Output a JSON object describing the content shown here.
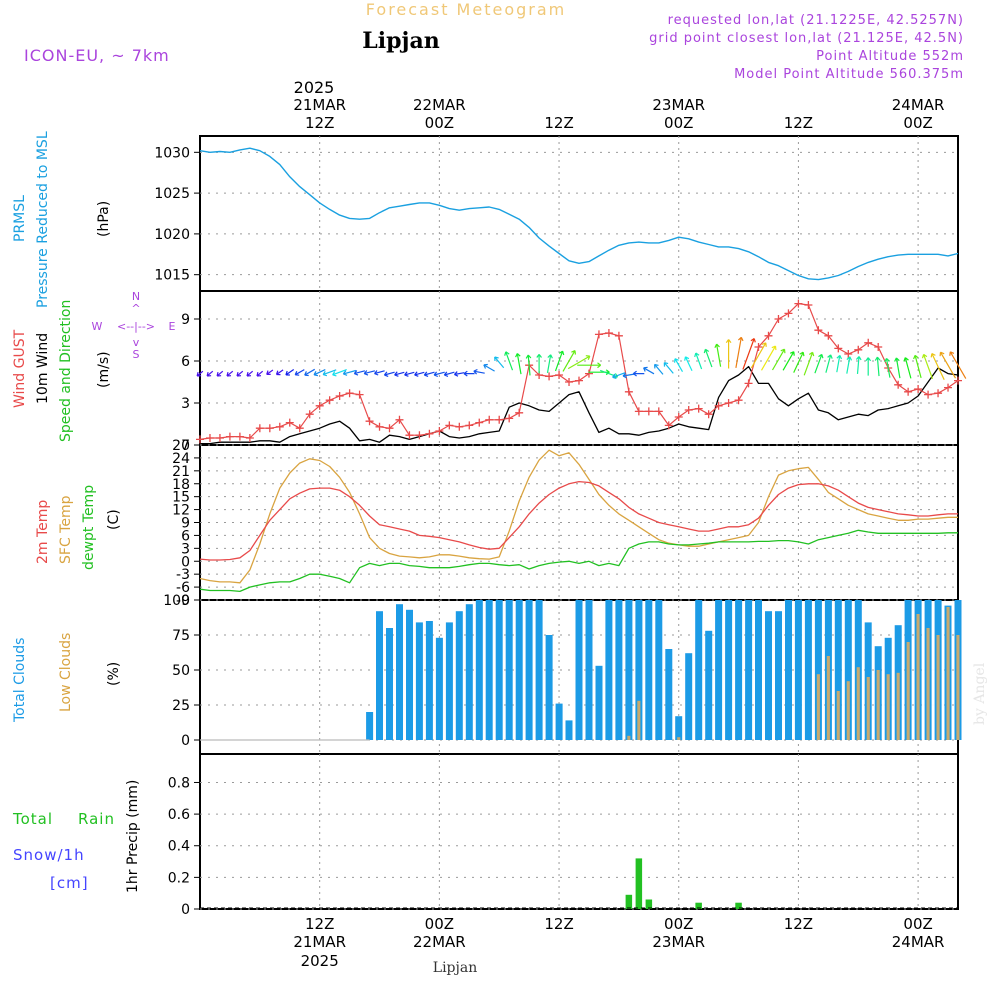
{
  "header": {
    "title": "Forecast Meteogram",
    "location": "Lipjan",
    "model": "ICON-EU, ~ 7km",
    "requested": "requested lon,lat (21.1225E, 42.5257N)",
    "grid": "grid point closest lon,lat (21.125E, 42.5N)",
    "altitude": "Point Altitude 552m",
    "model_altitude": "Model Point Altitude 560.375m",
    "credit": "by Angel",
    "bottom_location": "Lipjan"
  },
  "time_axis": {
    "top_year": "2025",
    "top_ticks": [
      {
        "h": 12,
        "l1": "21MAR",
        "l2": "12Z"
      },
      {
        "h": 24,
        "l1": "22MAR",
        "l2": "00Z"
      },
      {
        "h": 36,
        "l1": "",
        "l2": "12Z"
      },
      {
        "h": 48,
        "l1": "23MAR",
        "l2": "00Z"
      },
      {
        "h": 60,
        "l1": "",
        "l2": "12Z"
      },
      {
        "h": 72,
        "l1": "24MAR",
        "l2": "00Z"
      }
    ],
    "bottom_ticks": [
      {
        "h": 12,
        "l1": "12Z",
        "l2": "21MAR",
        "l3": "2025"
      },
      {
        "h": 24,
        "l1": "00Z",
        "l2": "22MAR",
        "l3": ""
      },
      {
        "h": 36,
        "l1": "12Z",
        "l2": "",
        "l3": ""
      },
      {
        "h": 48,
        "l1": "00Z",
        "l2": "23MAR",
        "l3": ""
      },
      {
        "h": 60,
        "l1": "12Z",
        "l2": "",
        "l3": ""
      },
      {
        "h": 72,
        "l1": "00Z",
        "l2": "24MAR",
        "l3": ""
      }
    ]
  },
  "colors": {
    "pressure": "#1aa0e0",
    "gust": "#e84a4a",
    "wind": "#000000",
    "temp2m": "#e84a4a",
    "sfc": "#d9a441",
    "dew": "#22c022",
    "totalcloud": "#1c9be6",
    "lowcloud": "#c8aa6e",
    "rain": "#22c022",
    "snow": "#4444ff",
    "purple": "#aa44dd",
    "title": "#f0c878"
  },
  "chart_data": [
    {
      "type": "line",
      "name": "pressure",
      "label1": "PRMSL",
      "label2": "Pressure Reduced to MSL",
      "unit": "(hPa)",
      "ylim": [
        1013,
        1032
      ],
      "yticks": [
        1015,
        1020,
        1025,
        1030
      ],
      "x_hours": [
        0,
        1,
        2,
        3,
        4,
        5,
        6,
        7,
        8,
        9,
        10,
        11,
        12,
        13,
        14,
        15,
        16,
        17,
        18,
        19,
        20,
        21,
        22,
        23,
        24,
        25,
        26,
        27,
        28,
        29,
        30,
        31,
        32,
        33,
        34,
        35,
        36,
        37,
        38,
        39,
        40,
        41,
        42,
        43,
        44,
        45,
        46,
        47,
        48,
        49,
        50,
        51,
        52,
        53,
        54,
        55,
        56,
        57,
        58,
        59,
        60,
        61,
        62,
        63,
        64,
        65,
        66,
        67,
        68,
        69,
        70,
        71,
        72,
        73,
        74,
        75,
        76
      ],
      "values": [
        1030.2,
        1030.0,
        1030.1,
        1030.0,
        1030.3,
        1030.5,
        1030.2,
        1029.5,
        1028.5,
        1027.0,
        1025.8,
        1024.8,
        1023.8,
        1023.0,
        1022.3,
        1021.9,
        1021.8,
        1021.9,
        1022.6,
        1023.2,
        1023.4,
        1023.6,
        1023.8,
        1023.8,
        1023.5,
        1023.1,
        1022.9,
        1023.1,
        1023.2,
        1023.3,
        1023.0,
        1022.4,
        1021.8,
        1020.8,
        1019.5,
        1018.5,
        1017.6,
        1016.7,
        1016.4,
        1016.6,
        1017.3,
        1018.0,
        1018.6,
        1018.9,
        1019.0,
        1018.9,
        1018.9,
        1019.2,
        1019.6,
        1019.4,
        1019.0,
        1018.7,
        1018.4,
        1018.4,
        1018.2,
        1017.8,
        1017.2,
        1016.5,
        1016.1,
        1015.5,
        1014.9,
        1014.5,
        1014.4,
        1014.6,
        1014.9,
        1015.4,
        1016.0,
        1016.5,
        1016.9,
        1017.2,
        1017.4,
        1017.5,
        1017.5,
        1017.5,
        1017.5,
        1017.3,
        1017.6
      ]
    },
    {
      "type": "line",
      "name": "wind",
      "label1": "Wind GUST",
      "label2": "10m Wind",
      "label3": "Speed and Direction",
      "unit": "(m/s)",
      "compass": {
        "n": "N",
        "s": "S",
        "e": "E",
        "w": "W"
      },
      "ylim": [
        0,
        11
      ],
      "yticks": [
        0,
        3,
        6,
        9
      ],
      "x_hours": [
        0,
        1,
        2,
        3,
        4,
        5,
        6,
        7,
        8,
        9,
        10,
        11,
        12,
        13,
        14,
        15,
        16,
        17,
        18,
        19,
        20,
        21,
        22,
        23,
        24,
        25,
        26,
        27,
        28,
        29,
        30,
        31,
        32,
        33,
        34,
        35,
        36,
        37,
        38,
        39,
        40,
        41,
        42,
        43,
        44,
        45,
        46,
        47,
        48,
        49,
        50,
        51,
        52,
        53,
        54,
        55,
        56,
        57,
        58,
        59,
        60,
        61,
        62,
        63,
        64,
        65,
        66,
        67,
        68,
        69,
        70,
        71,
        72,
        73,
        74,
        75,
        76
      ],
      "gust": [
        0.4,
        0.5,
        0.5,
        0.6,
        0.6,
        0.5,
        1.2,
        1.2,
        1.3,
        1.6,
        1.2,
        2.2,
        2.8,
        3.2,
        3.5,
        3.7,
        3.6,
        1.7,
        1.3,
        1.2,
        1.8,
        0.7,
        0.7,
        0.8,
        1.0,
        1.4,
        1.3,
        1.4,
        1.6,
        1.8,
        1.8,
        1.9,
        2.3,
        5.7,
        5.0,
        4.9,
        5.0,
        4.5,
        4.6,
        5.1,
        7.9,
        8.0,
        7.8,
        3.8,
        2.4,
        2.4,
        2.4,
        1.4,
        2.0,
        2.5,
        2.6,
        2.2,
        2.8,
        3.0,
        3.2,
        4.4,
        7.0,
        7.8,
        9.0,
        9.4,
        10.1,
        10.0,
        8.2,
        7.8,
        6.9,
        6.5,
        6.8,
        7.3,
        7.0,
        5.5,
        4.3,
        3.8,
        4.0,
        3.6,
        3.7,
        4.1,
        4.6
      ],
      "wind": [
        0.1,
        0.1,
        0.2,
        0.2,
        0.2,
        0.2,
        0.3,
        0.3,
        0.2,
        0.6,
        0.8,
        1.0,
        1.2,
        1.5,
        1.7,
        1.2,
        0.3,
        0.4,
        0.2,
        0.7,
        0.6,
        0.4,
        0.6,
        0.8,
        1.0,
        0.6,
        0.5,
        0.6,
        0.8,
        0.9,
        1.0,
        2.7,
        3.0,
        2.8,
        2.5,
        2.4,
        3.0,
        3.6,
        3.8,
        2.3,
        0.9,
        1.2,
        0.8,
        0.8,
        0.7,
        0.9,
        1.0,
        1.2,
        1.5,
        1.3,
        1.2,
        1.1,
        3.4,
        4.6,
        5.0,
        5.6,
        4.4,
        4.4,
        3.3,
        2.8,
        3.3,
        3.7,
        2.5,
        2.3,
        1.8,
        2.0,
        2.2,
        2.1,
        2.5,
        2.6,
        2.8,
        3.0,
        3.5,
        4.5,
        5.5,
        5.1,
        5.0
      ],
      "arrow_y": [
        5.1,
        5.1,
        5.1,
        5.1,
        5.1,
        5.1,
        5.1,
        5.2,
        5.2,
        5.2,
        5.2,
        5.2,
        5.2,
        5.2,
        5.2,
        5.2,
        5.2,
        5.2,
        5.2,
        5.1,
        5.1,
        5.1,
        5.1,
        5.1,
        5.1,
        5.1,
        5.1,
        5.1,
        5.2,
        5.5,
        5.9,
        6.0,
        5.8,
        5.7,
        5.8,
        5.8,
        6.0,
        6.0,
        5.9,
        5.7,
        5.2,
        5.1,
        5.0,
        5.0,
        5.1,
        5.3,
        5.4,
        5.5,
        5.7,
        5.8,
        6.0,
        6.2,
        6.4,
        6.5,
        6.6,
        6.5,
        6.4,
        6.2,
        6.1,
        6.0,
        5.9,
        5.8,
        5.8,
        5.8,
        5.8,
        5.7,
        5.7,
        5.6,
        5.6,
        5.5,
        5.5,
        5.5,
        5.6,
        5.6,
        5.6,
        5.7,
        5.7
      ],
      "arrow_dir": [
        230,
        230,
        230,
        230,
        230,
        230,
        230,
        235,
        235,
        235,
        240,
        240,
        245,
        250,
        250,
        255,
        255,
        255,
        255,
        255,
        255,
        255,
        255,
        255,
        255,
        255,
        260,
        270,
        280,
        300,
        320,
        340,
        350,
        355,
        0,
        10,
        20,
        30,
        60,
        90,
        90,
        110,
        250,
        260,
        270,
        300,
        320,
        320,
        330,
        335,
        340,
        340,
        350,
        0,
        10,
        20,
        30,
        30,
        30,
        30,
        25,
        20,
        20,
        15,
        10,
        10,
        5,
        0,
        355,
        350,
        350,
        345,
        345,
        340,
        335,
        330,
        330
      ],
      "arrow_speed": [
        0.3,
        0.3,
        0.3,
        0.3,
        0.3,
        0.3,
        0.3,
        0.3,
        0.4,
        0.7,
        0.9,
        1.1,
        1.3,
        1.6,
        1.8,
        1.4,
        1.0,
        1.0,
        0.9,
        0.9,
        0.8,
        0.8,
        0.8,
        0.9,
        1.0,
        0.9,
        0.8,
        0.9,
        1.0,
        1.3,
        1.6,
        2.7,
        3.0,
        2.9,
        2.6,
        2.5,
        3.0,
        3.6,
        3.8,
        3.5,
        3.0,
        2.5,
        1.5,
        1.2,
        1.0,
        1.2,
        1.4,
        1.6,
        1.8,
        1.9,
        2.2,
        2.6,
        3.4,
        4.6,
        5.0,
        5.4,
        4.6,
        4.4,
        3.6,
        3.1,
        3.3,
        3.7,
        2.8,
        2.5,
        2.2,
        2.2,
        2.3,
        2.4,
        2.6,
        2.7,
        2.9,
        3.1,
        3.5,
        4.0,
        4.6,
        4.8,
        5.0
      ]
    },
    {
      "type": "line",
      "name": "temperature",
      "label1": "2m Temp",
      "label2": "SFC Temp",
      "label3": "dewpt Temp",
      "unit": "(C)",
      "ylim": [
        -9,
        27
      ],
      "yticks": [
        -9,
        -6,
        -3,
        0,
        3,
        6,
        9,
        12,
        15,
        18,
        21,
        24,
        27
      ],
      "x_hours": [
        0,
        1,
        2,
        3,
        4,
        5,
        6,
        7,
        8,
        9,
        10,
        11,
        12,
        13,
        14,
        15,
        16,
        17,
        18,
        19,
        20,
        21,
        22,
        23,
        24,
        25,
        26,
        27,
        28,
        29,
        30,
        31,
        32,
        33,
        34,
        35,
        36,
        37,
        38,
        39,
        40,
        41,
        42,
        43,
        44,
        45,
        46,
        47,
        48,
        49,
        50,
        51,
        52,
        53,
        54,
        55,
        56,
        57,
        58,
        59,
        60,
        61,
        62,
        63,
        64,
        65,
        66,
        67,
        68,
        69,
        70,
        71,
        72,
        73,
        74,
        75,
        76
      ],
      "temp2m": [
        0.5,
        0.3,
        0.3,
        0.4,
        0.8,
        2.5,
        6.0,
        9.5,
        12.0,
        14.5,
        15.8,
        16.8,
        17.0,
        17.0,
        16.5,
        15.0,
        13.0,
        10.5,
        8.5,
        8.0,
        7.5,
        7.0,
        6.0,
        5.8,
        5.5,
        5.0,
        4.5,
        3.8,
        3.2,
        2.8,
        3.0,
        5.5,
        8.0,
        11.0,
        13.5,
        15.5,
        17.0,
        18.0,
        18.5,
        18.3,
        17.5,
        16.0,
        14.5,
        12.5,
        11.0,
        10.0,
        9.0,
        8.5,
        8.0,
        7.5,
        7.0,
        7.0,
        7.5,
        8.0,
        8.0,
        8.5,
        10.0,
        13.0,
        15.5,
        17.0,
        17.8,
        18.0,
        18.0,
        17.5,
        16.5,
        15.0,
        13.5,
        12.5,
        12.0,
        11.5,
        11.0,
        10.8,
        10.5,
        10.5,
        10.8,
        11.0,
        11.0
      ],
      "sfc": [
        -4.0,
        -4.5,
        -4.8,
        -4.8,
        -5.0,
        -2.0,
        4.0,
        11.0,
        17.0,
        20.5,
        22.8,
        23.8,
        23.4,
        22.0,
        19.5,
        16.0,
        11.0,
        5.5,
        3.0,
        1.8,
        1.2,
        1.0,
        0.8,
        1.0,
        1.5,
        1.5,
        1.2,
        0.8,
        0.6,
        0.5,
        1.0,
        7.0,
        14.0,
        19.5,
        23.5,
        25.8,
        24.5,
        25.2,
        22.5,
        19.0,
        15.5,
        13.0,
        11.0,
        9.5,
        8.0,
        6.5,
        5.0,
        4.2,
        3.8,
        3.5,
        3.5,
        4.0,
        4.5,
        5.0,
        5.5,
        6.0,
        9.0,
        15.0,
        20.0,
        21.0,
        21.5,
        21.8,
        19.0,
        16.0,
        14.5,
        13.0,
        12.0,
        11.0,
        10.5,
        10.0,
        9.5,
        9.5,
        9.8,
        9.8,
        10.0,
        10.2,
        10.2
      ],
      "dew": [
        -6.5,
        -6.8,
        -6.8,
        -6.8,
        -7.0,
        -6.0,
        -5.5,
        -5.0,
        -4.8,
        -4.8,
        -4.0,
        -3.0,
        -3.0,
        -3.5,
        -4.0,
        -5.0,
        -1.5,
        -0.5,
        -1.0,
        -0.5,
        -0.5,
        -1.0,
        -1.2,
        -1.5,
        -1.5,
        -1.5,
        -1.2,
        -0.8,
        -0.5,
        -0.5,
        -0.8,
        -1.0,
        -0.8,
        -1.8,
        -1.0,
        -0.5,
        -0.2,
        0.0,
        -0.5,
        0.0,
        -1.0,
        -0.5,
        -1.0,
        3.0,
        4.0,
        4.5,
        4.5,
        4.0,
        3.8,
        3.8,
        4.0,
        4.2,
        4.5,
        4.5,
        4.5,
        4.5,
        4.6,
        4.6,
        4.8,
        4.8,
        4.5,
        4.0,
        5.0,
        5.5,
        6.0,
        6.5,
        7.2,
        6.8,
        6.5,
        6.5,
        6.5,
        6.5,
        6.5,
        6.5,
        6.5,
        6.6,
        6.6
      ]
    },
    {
      "type": "bar",
      "name": "clouds",
      "label1": "Total Clouds",
      "label2": "Low Clouds",
      "unit": "(%)",
      "ylim": [
        -10,
        100
      ],
      "yticks": [
        0,
        25,
        50,
        75,
        100
      ],
      "x_hours": [
        0,
        1,
        2,
        3,
        4,
        5,
        6,
        7,
        8,
        9,
        10,
        11,
        12,
        13,
        14,
        15,
        16,
        17,
        18,
        19,
        20,
        21,
        22,
        23,
        24,
        25,
        26,
        27,
        28,
        29,
        30,
        31,
        32,
        33,
        34,
        35,
        36,
        37,
        38,
        39,
        40,
        41,
        42,
        43,
        44,
        45,
        46,
        47,
        48,
        49,
        50,
        51,
        52,
        53,
        54,
        55,
        56,
        57,
        58,
        59,
        60,
        61,
        62,
        63,
        64,
        65,
        66,
        67,
        68,
        69,
        70,
        71,
        72,
        73,
        74,
        75,
        76
      ],
      "total": [
        0,
        0,
        0,
        0,
        0,
        0,
        0,
        0,
        0,
        0,
        0,
        0,
        0,
        0,
        0,
        0,
        0,
        20,
        92,
        80,
        97,
        93,
        84,
        85,
        73,
        84,
        92,
        97,
        100,
        100,
        100,
        100,
        100,
        100,
        100,
        75,
        26,
        14,
        100,
        100,
        53,
        100,
        100,
        100,
        100,
        100,
        100,
        65,
        17,
        62,
        100,
        78,
        100,
        100,
        100,
        100,
        100,
        92,
        92,
        100,
        100,
        100,
        100,
        100,
        100,
        100,
        100,
        84,
        67,
        73,
        82,
        100,
        100,
        100,
        100,
        96,
        100
      ],
      "low": [
        0,
        0,
        0,
        0,
        0,
        0,
        0,
        0,
        0,
        0,
        0,
        0,
        0,
        0,
        0,
        0,
        0,
        0,
        0,
        0,
        0,
        0,
        0,
        0,
        0,
        0,
        0,
        0,
        0,
        0,
        0,
        0,
        0,
        0,
        0,
        0,
        0,
        0,
        0,
        0,
        0,
        0,
        0,
        3,
        28,
        0,
        0,
        0,
        2,
        0,
        0,
        0,
        0,
        0,
        0,
        0,
        0,
        0,
        0,
        0,
        0,
        0,
        47,
        60,
        35,
        42,
        52,
        45,
        50,
        47,
        48,
        70,
        90,
        80,
        75,
        95,
        75
      ]
    },
    {
      "type": "bar",
      "name": "precip",
      "label1": "Total",
      "label2": "Rain",
      "label3": "Snow/1h",
      "label4": "[cm]",
      "unit": "1hr Precip (mm)",
      "ylim": [
        0,
        0.98
      ],
      "yticks": [
        0,
        0.2,
        0.4,
        0.6,
        0.8
      ],
      "ytick_labels": [
        "0",
        "0.2",
        "0.4",
        "0.6",
        "0.8"
      ],
      "rain_hours": [
        43,
        44,
        45,
        50,
        54
      ],
      "rain_values": [
        0.09,
        0.32,
        0.06,
        0.04,
        0.04
      ]
    }
  ]
}
